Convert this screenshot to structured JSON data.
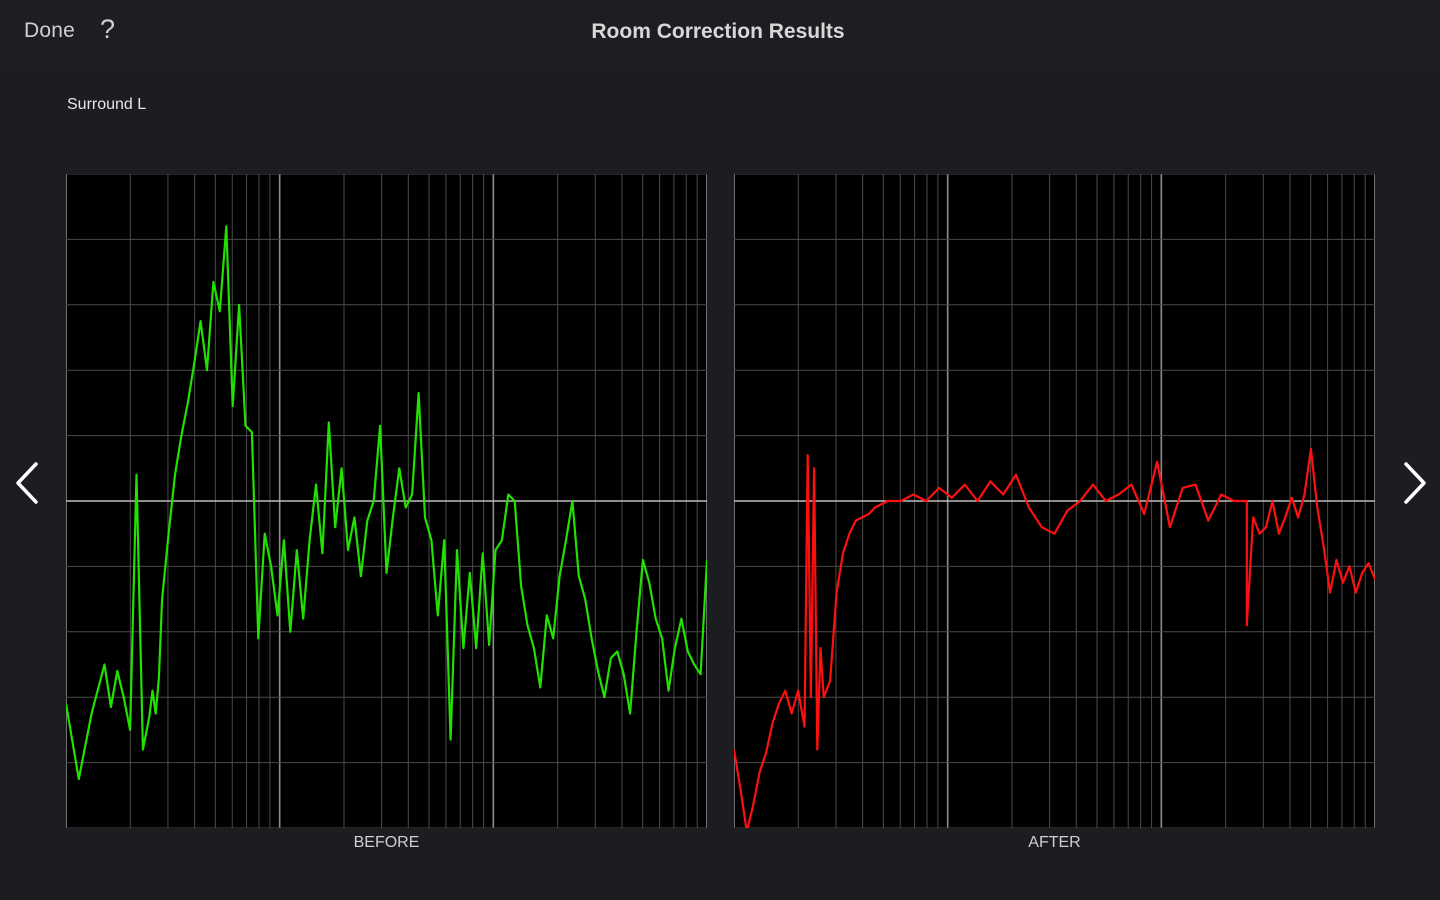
{
  "header": {
    "done_label": "Done",
    "help_label": "?",
    "title": "Room Correction Results"
  },
  "channel": {
    "name": "Surround L"
  },
  "graphs": {
    "before_label": "BEFORE",
    "after_label": "AFTER",
    "before_color": "#22e000",
    "after_color": "#ff1010"
  },
  "navigation": {
    "prev_icon": "chevron-left-icon",
    "next_icon": "chevron-right-icon"
  },
  "chart_data": [
    {
      "type": "line",
      "title": "BEFORE",
      "xscale": "log",
      "grid": true,
      "xlim": [
        0,
        1
      ],
      "ylim": [
        -10,
        10
      ],
      "series": [
        {
          "x": [
            0.0,
            0.02,
            0.04,
            0.06,
            0.07,
            0.08,
            0.09,
            0.1,
            0.11,
            0.12,
            0.13,
            0.135,
            0.14,
            0.145,
            0.15,
            0.16,
            0.17,
            0.18,
            0.19,
            0.2,
            0.21,
            0.22,
            0.23,
            0.24,
            0.25,
            0.26,
            0.27,
            0.28,
            0.29,
            0.3,
            0.31,
            0.32,
            0.33,
            0.34,
            0.35,
            0.36,
            0.37,
            0.38,
            0.39,
            0.4,
            0.41,
            0.42,
            0.43,
            0.44,
            0.45,
            0.46,
            0.47,
            0.48,
            0.49,
            0.5,
            0.51,
            0.52,
            0.53,
            0.54,
            0.55,
            0.56,
            0.57,
            0.58,
            0.59,
            0.6,
            0.61,
            0.62,
            0.63,
            0.64,
            0.65,
            0.66,
            0.67,
            0.68,
            0.69,
            0.7,
            0.71,
            0.72,
            0.73,
            0.74,
            0.75,
            0.76,
            0.77,
            0.78,
            0.79,
            0.8,
            0.81,
            0.82,
            0.83,
            0.84,
            0.85,
            0.86,
            0.87,
            0.88,
            0.89,
            0.9,
            0.91,
            0.92,
            0.93,
            0.94,
            0.95,
            0.96,
            0.97,
            0.98,
            0.99,
            1.0
          ],
          "y": [
            -6.2,
            -8.5,
            -6.5,
            -5.0,
            -6.3,
            -5.2,
            -6.0,
            -7.0,
            0.8,
            -7.6,
            -6.6,
            -5.8,
            -6.5,
            -5.4,
            -3.0,
            -1.0,
            0.8,
            2.0,
            3.0,
            4.2,
            5.5,
            4.0,
            6.7,
            5.8,
            8.4,
            2.9,
            6.0,
            2.3,
            2.1,
            -4.2,
            -1.0,
            -2.0,
            -3.5,
            -1.2,
            -4.0,
            -1.5,
            -3.6,
            -1.2,
            0.5,
            -1.6,
            2.4,
            -0.8,
            1.0,
            -1.5,
            -0.5,
            -2.3,
            -0.6,
            0.0,
            2.3,
            -2.2,
            -0.5,
            1.0,
            -0.2,
            0.2,
            3.3,
            -0.5,
            -1.2,
            -3.5,
            -1.2,
            -7.3,
            -1.5,
            -4.5,
            -2.2,
            -4.5,
            -1.6,
            -4.4,
            -1.5,
            -1.2,
            0.2,
            0.0,
            -2.6,
            -3.8,
            -4.5,
            -5.7,
            -3.5,
            -4.2,
            -2.3,
            -1.2,
            0.0,
            -2.3,
            -3.0,
            -4.2,
            -5.2,
            -6.0,
            -4.8,
            -4.6,
            -5.3,
            -6.5,
            -4.0,
            -1.8,
            -2.5,
            -3.6,
            -4.2,
            -5.8,
            -4.5,
            -3.6,
            -4.6,
            -5.0,
            -5.3,
            -1.8
          ]
        }
      ]
    },
    {
      "type": "line",
      "title": "AFTER",
      "xscale": "log",
      "grid": true,
      "xlim": [
        0,
        1
      ],
      "ylim": [
        -10,
        10
      ],
      "series": [
        {
          "x": [
            0.0,
            0.01,
            0.02,
            0.03,
            0.04,
            0.05,
            0.06,
            0.07,
            0.08,
            0.09,
            0.1,
            0.11,
            0.115,
            0.12,
            0.125,
            0.13,
            0.135,
            0.14,
            0.15,
            0.16,
            0.17,
            0.18,
            0.19,
            0.2,
            0.21,
            0.22,
            0.24,
            0.26,
            0.28,
            0.3,
            0.32,
            0.34,
            0.36,
            0.38,
            0.4,
            0.42,
            0.44,
            0.46,
            0.48,
            0.5,
            0.52,
            0.54,
            0.56,
            0.58,
            0.6,
            0.62,
            0.64,
            0.66,
            0.68,
            0.7,
            0.72,
            0.74,
            0.76,
            0.78,
            0.8,
            0.8,
            0.81,
            0.82,
            0.83,
            0.84,
            0.85,
            0.86,
            0.87,
            0.88,
            0.89,
            0.9,
            0.91,
            0.92,
            0.93,
            0.94,
            0.95,
            0.96,
            0.97,
            0.98,
            0.99,
            1.0
          ],
          "y": [
            -7.6,
            -8.8,
            -10.1,
            -9.3,
            -8.3,
            -7.7,
            -6.8,
            -6.2,
            -5.8,
            -6.5,
            -5.8,
            -6.9,
            1.4,
            -6.0,
            1.0,
            -7.6,
            -4.5,
            -6.0,
            -5.5,
            -2.8,
            -1.6,
            -1.0,
            -0.6,
            -0.5,
            -0.4,
            -0.2,
            0.0,
            0.0,
            0.2,
            0.0,
            0.4,
            0.1,
            0.5,
            0.0,
            0.6,
            0.2,
            0.8,
            -0.2,
            -0.8,
            -1.0,
            -0.3,
            0.0,
            0.5,
            0.0,
            0.2,
            0.5,
            -0.4,
            1.2,
            -0.8,
            0.4,
            0.5,
            -0.6,
            0.2,
            0.0,
            0.0,
            -3.8,
            -0.5,
            -1.0,
            -0.8,
            0.0,
            -1.0,
            -0.5,
            0.1,
            -0.5,
            0.2,
            1.6,
            -0.2,
            -1.4,
            -2.8,
            -1.8,
            -2.5,
            -2.0,
            -2.8,
            -2.2,
            -1.9,
            -2.4
          ]
        }
      ]
    }
  ]
}
